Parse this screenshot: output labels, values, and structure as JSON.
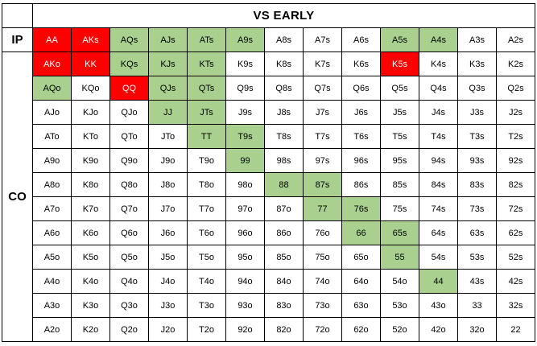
{
  "title": "VS  EARLY",
  "positions": {
    "top": "IP",
    "side": "CO"
  },
  "colors": {
    "raise": "#ff0000",
    "call": "#a9d08e",
    "fold": "#ffffff"
  },
  "legend_codes": {
    "R": "raise",
    "C": "call",
    "F": "fold"
  },
  "rows": [
    {
      "hands": [
        "AA",
        "AKs",
        "AQs",
        "AJs",
        "ATs",
        "A9s",
        "A8s",
        "A7s",
        "A6s",
        "A5s",
        "A4s",
        "A3s",
        "A2s"
      ],
      "actions": "RRCCCCFFFCCFF"
    },
    {
      "hands": [
        "AKo",
        "KK",
        "KQs",
        "KJs",
        "KTs",
        "K9s",
        "K8s",
        "K7s",
        "K6s",
        "K5s",
        "K4s",
        "K3s",
        "K2s"
      ],
      "actions": "RRCCCFFFFRFFF"
    },
    {
      "hands": [
        "AQo",
        "KQo",
        "QQ",
        "QJs",
        "QTs",
        "Q9s",
        "Q8s",
        "Q7s",
        "Q6s",
        "Q5s",
        "Q4s",
        "Q3s",
        "Q2s"
      ],
      "actions": "CFRCCFFFFFFFF"
    },
    {
      "hands": [
        "AJo",
        "KJo",
        "QJo",
        "JJ",
        "JTs",
        "J9s",
        "J8s",
        "J7s",
        "J6s",
        "J5s",
        "J4s",
        "J3s",
        "J2s"
      ],
      "actions": "FFFCCFFFFFFFF"
    },
    {
      "hands": [
        "ATo",
        "KTo",
        "QTo",
        "JTo",
        "TT",
        "T9s",
        "T8s",
        "T7s",
        "T6s",
        "T5s",
        "T4s",
        "T3s",
        "T2s"
      ],
      "actions": "FFFFCCFFFFFFF"
    },
    {
      "hands": [
        "A9o",
        "K9o",
        "Q9o",
        "J9o",
        "T9o",
        "99",
        "98s",
        "97s",
        "96s",
        "95s",
        "94s",
        "93s",
        "92s"
      ],
      "actions": "FFFFFCFFFFFFF"
    },
    {
      "hands": [
        "A8o",
        "K8o",
        "Q8o",
        "J8o",
        "T8o",
        "98o",
        "88",
        "87s",
        "86s",
        "85s",
        "84s",
        "83s",
        "82s"
      ],
      "actions": "FFFFFFCCFFFFF"
    },
    {
      "hands": [
        "A7o",
        "K7o",
        "Q7o",
        "J7o",
        "T7o",
        "97o",
        "87o",
        "77",
        "76s",
        "75s",
        "74s",
        "73s",
        "72s"
      ],
      "actions": "FFFFFFFCCFFFF"
    },
    {
      "hands": [
        "A6o",
        "K6o",
        "Q6o",
        "J6o",
        "T6o",
        "96o",
        "86o",
        "76o",
        "66",
        "65s",
        "64s",
        "63s",
        "62s"
      ],
      "actions": "FFFFFFFFCCFFF"
    },
    {
      "hands": [
        "A5o",
        "K5o",
        "Q5o",
        "J5o",
        "T5o",
        "95o",
        "85o",
        "75o",
        "65o",
        "55",
        "54s",
        "53s",
        "52s"
      ],
      "actions": "FFFFFFFFFCFFF"
    },
    {
      "hands": [
        "A4o",
        "K4o",
        "Q4o",
        "J4o",
        "T4o",
        "94o",
        "84o",
        "74o",
        "64o",
        "54o",
        "44",
        "43s",
        "42s"
      ],
      "actions": "FFFFFFFFFFCFF"
    },
    {
      "hands": [
        "A3o",
        "K3o",
        "Q3o",
        "J3o",
        "T3o",
        "93o",
        "83o",
        "73o",
        "63o",
        "53o",
        "43o",
        "33",
        "32s"
      ],
      "actions": "FFFFFFFFFFFFF"
    },
    {
      "hands": [
        "A2o",
        "K2o",
        "Q2o",
        "J2o",
        "T2o",
        "92o",
        "82o",
        "72o",
        "62o",
        "52o",
        "42o",
        "32o",
        "22"
      ],
      "actions": "FFFFFFFFFFFFF"
    }
  ]
}
